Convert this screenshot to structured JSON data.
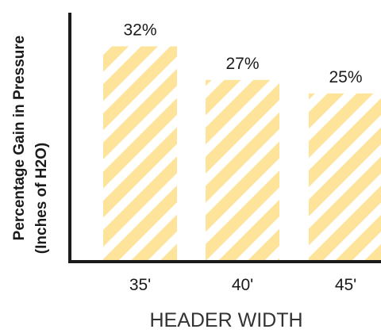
{
  "chart_data": {
    "type": "bar",
    "categories": [
      "35'",
      "40'",
      "45'"
    ],
    "values": [
      32,
      27,
      25
    ],
    "data_labels": [
      "32%",
      "27%",
      "25%"
    ],
    "title": "",
    "xlabel": "HEADER WIDTH",
    "ylabel_lines": [
      "Percentage Gain in Pressure",
      "(Inches of H2O)"
    ],
    "ylim": [
      0,
      37
    ],
    "grid": false,
    "legend": "none",
    "bar_pattern": "diagonal-stripes"
  },
  "colors": {
    "bar_fill": "#fde49a",
    "bar_stripe": "#ffffff",
    "axis": "#1a1a1a",
    "text": "#1a1a1a",
    "axis_title": "#333333"
  }
}
